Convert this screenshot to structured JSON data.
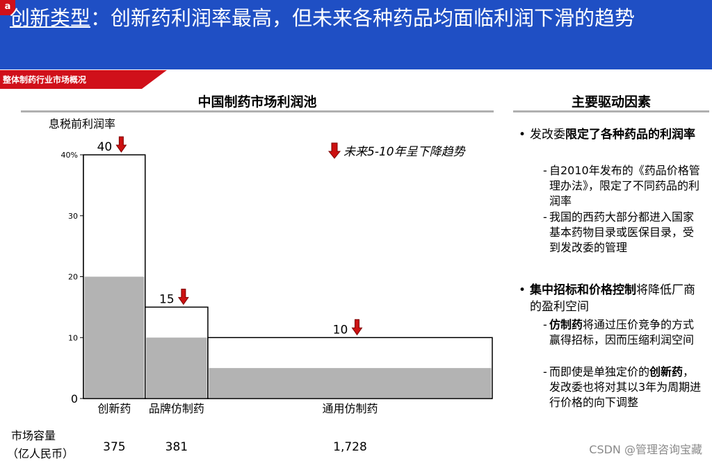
{
  "header": {
    "badge": "a",
    "title_underlined": "创新类型",
    "title_rest": "：创新药利润率最高，但未来各种药品均面临利润下滑的趋势"
  },
  "section_tag": "整体制药行业市场概况",
  "chart_heading": "中国制药市场利润池",
  "chart_data": {
    "type": "bar",
    "title": "中国制药市场利润池",
    "ylabel": "息税前利润率",
    "ylim": [
      0,
      40
    ],
    "yticks": [
      "0",
      "10",
      "20",
      "30",
      "40%"
    ],
    "categories": [
      "创新药",
      "品牌仿制药",
      "通用仿制药"
    ],
    "values": [
      40,
      15,
      10
    ],
    "inner_values": [
      20,
      10,
      5
    ],
    "value_labels": [
      "40",
      "15",
      "10"
    ],
    "widths": [
      375,
      381,
      1728
    ],
    "width_labels": [
      "375",
      "381",
      "1,728"
    ],
    "width_axis_label_line1": "市场容量",
    "width_axis_label_line2": "（亿人民币）",
    "legend": "未来5-10年呈下降趋势",
    "colors": {
      "outline": "#000000",
      "fill": "#b3b3b3",
      "arrow": "#cc1111"
    }
  },
  "drivers": {
    "heading": "主要驱动因素",
    "b1_prefix": "发改委",
    "b1_bold": "限定了各种药品的利润率",
    "b1_sub1": "自2010年发布的《药品价格管理办法》，限定了不同药品的利润率",
    "b1_sub2": "我国的西药大部分都进入国家基本药物目录或医保目录，受到发改委的管理",
    "b2_bold": "集中招标和价格控制",
    "b2_rest": "将降低厂商的盈利空间",
    "b2_sub1_bold": "仿制药",
    "b2_sub1_rest": "将通过压价竞争的方式赢得招标，因而压缩利润空间",
    "b2_sub2_pre": "而即使是单独定价的",
    "b2_sub2_bold": "创新药",
    "b2_sub2_rest": "，发改委也将对其以3年为周期进行价格的向下调整"
  },
  "watermark": "CSDN @管理咨询宝藏"
}
